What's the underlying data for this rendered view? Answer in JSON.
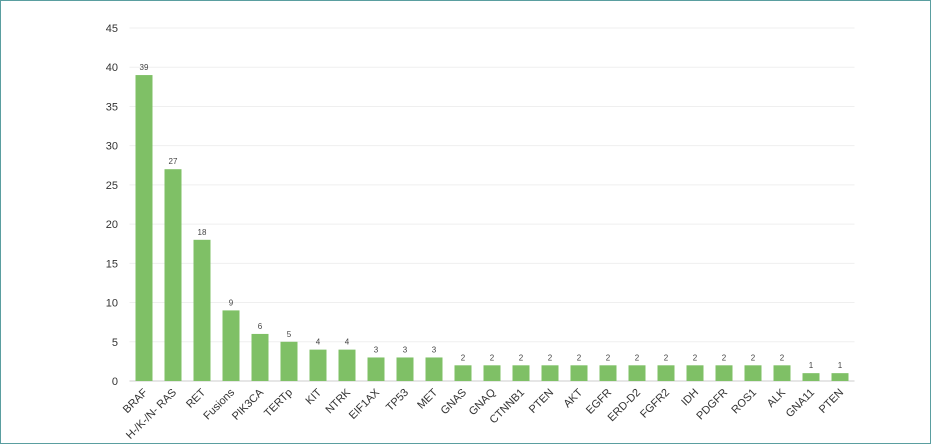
{
  "chart_data": {
    "type": "bar",
    "categories": [
      "BRAF",
      "H-/K-/N- RAS",
      "RET",
      "Fusions",
      "PIK3CA",
      "TERTp",
      "KIT",
      "NTRK",
      "EIF1AX",
      "TP53",
      "MET",
      "GNAS",
      "GNAQ",
      "CTNNB1",
      "PTEN",
      "AKT",
      "EGFR",
      "ERD-D2",
      "FGFR2",
      "IDH",
      "PDGFR",
      "ROS1",
      "ALK",
      "GNA11",
      "PTEN"
    ],
    "values": [
      39,
      27,
      18,
      9,
      6,
      5,
      4,
      4,
      3,
      3,
      3,
      2,
      2,
      2,
      2,
      2,
      2,
      2,
      2,
      2,
      2,
      2,
      2,
      1,
      1
    ],
    "color": "#7fc066",
    "ylim": [
      0,
      45
    ],
    "yticks": [
      0,
      5,
      10,
      15,
      20,
      25,
      30,
      35,
      40,
      45
    ],
    "grid": true,
    "data_labels": true
  }
}
